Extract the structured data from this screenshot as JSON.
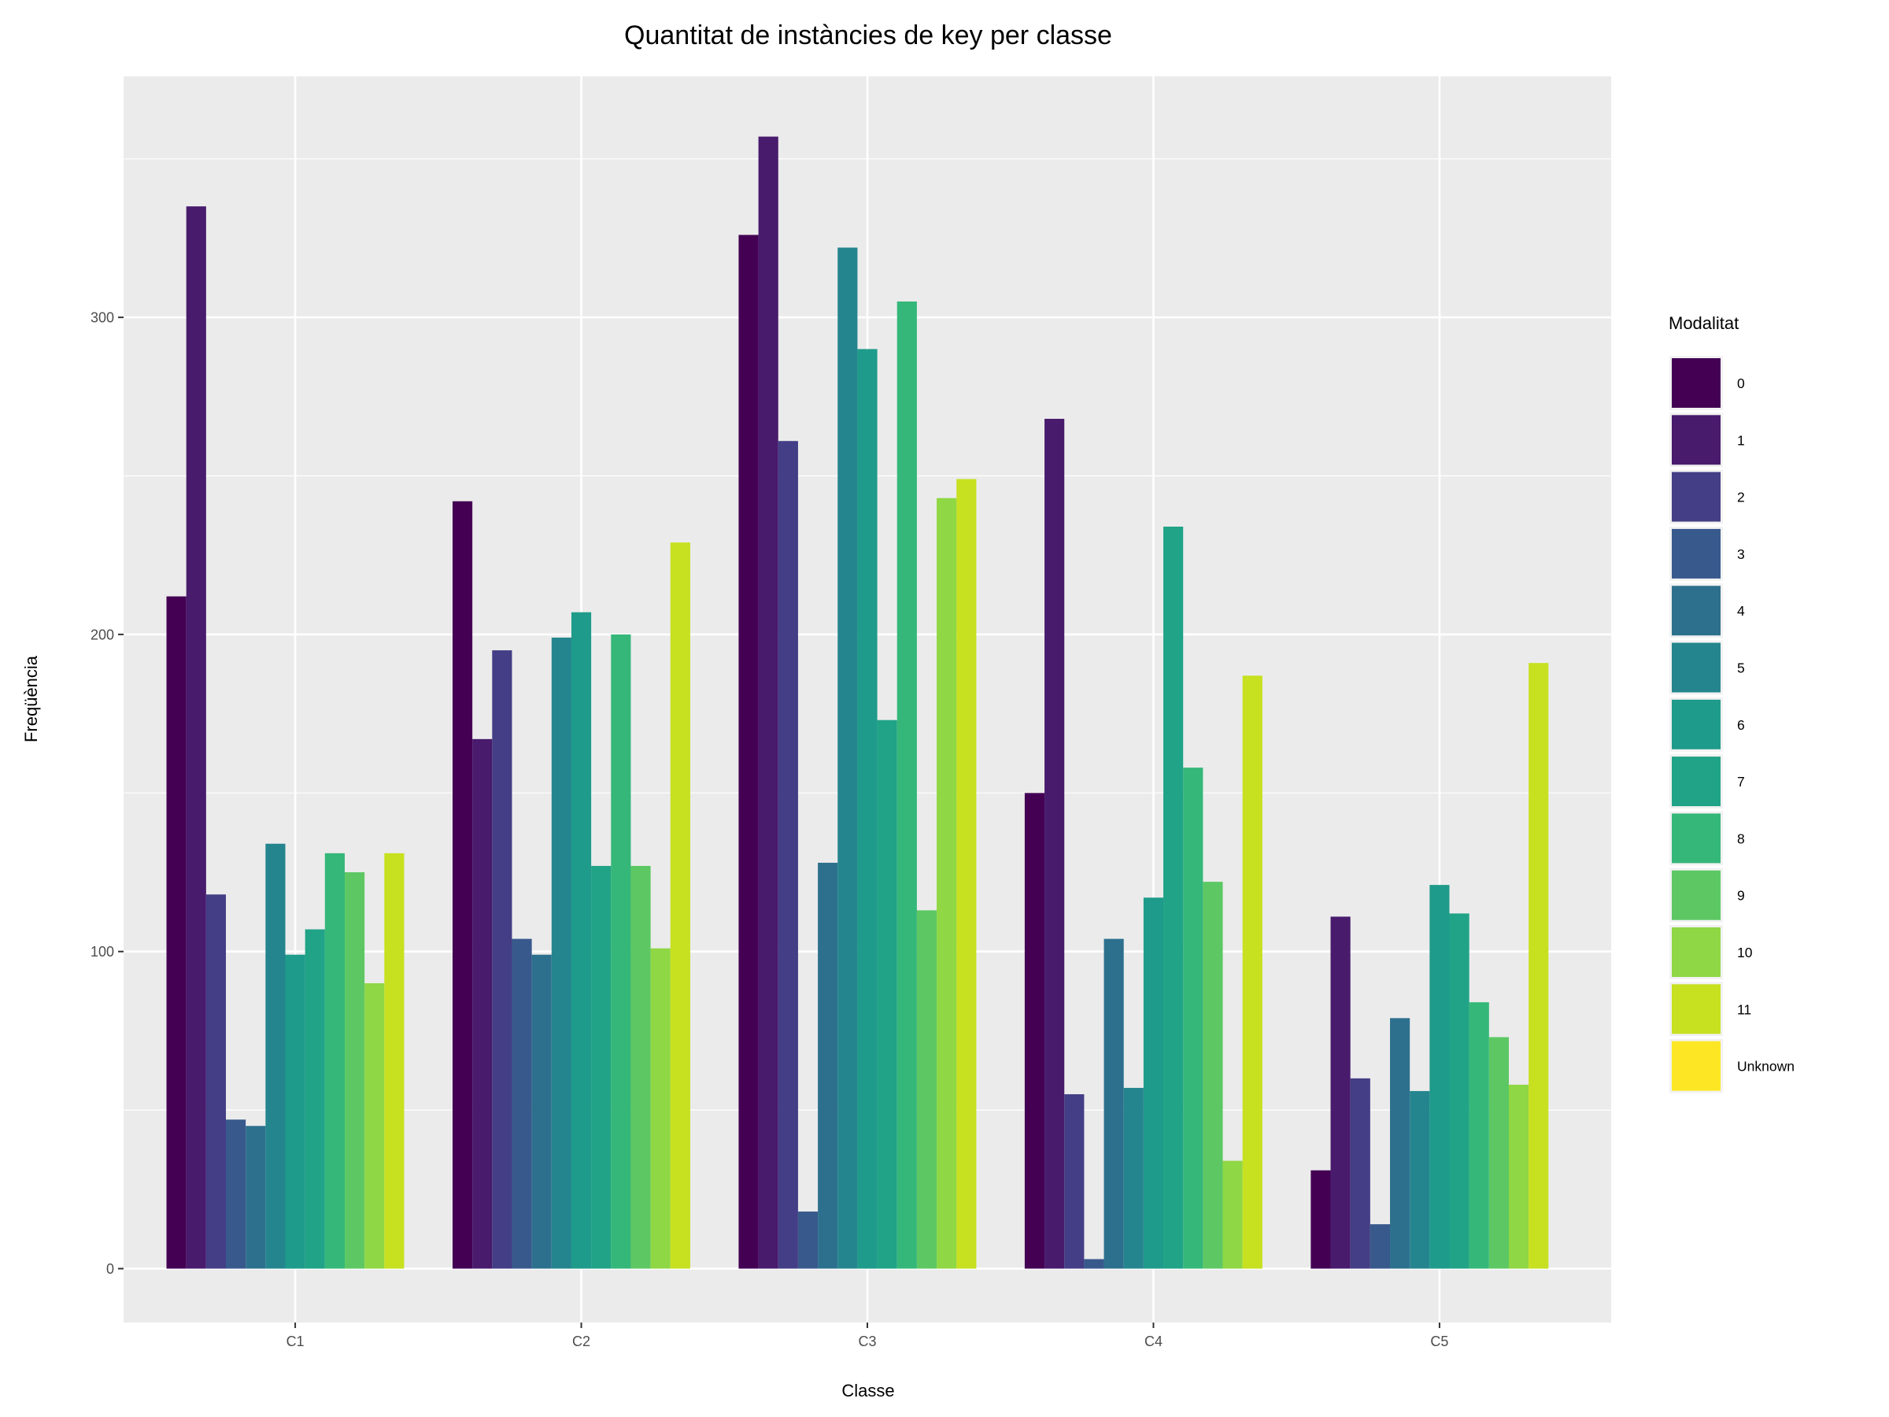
{
  "chart_data": {
    "type": "bar",
    "title": "Quantitat de instàncies de key per classe",
    "xlabel": "Classe",
    "ylabel": "Freqüència",
    "categories": [
      "C1",
      "C2",
      "C3",
      "C4",
      "C5"
    ],
    "y_ticks": [
      "0",
      "100",
      "200",
      "300"
    ],
    "ylim": [
      -17,
      376
    ],
    "grid": true,
    "legend": {
      "title": "Modalitat",
      "placement": "right"
    },
    "series": [
      {
        "name": "0",
        "color": "#440154",
        "values": [
          212,
          242,
          326,
          150,
          31
        ]
      },
      {
        "name": "1",
        "color": "#481B6D",
        "values": [
          335,
          167,
          357,
          268,
          111
        ]
      },
      {
        "name": "2",
        "color": "#433E85",
        "values": [
          118,
          195,
          261,
          55,
          60
        ]
      },
      {
        "name": "3",
        "color": "#38598C",
        "values": [
          47,
          104,
          18,
          3,
          14
        ]
      },
      {
        "name": "4",
        "color": "#2D708E",
        "values": [
          45,
          99,
          128,
          104,
          79
        ]
      },
      {
        "name": "5",
        "color": "#25858E",
        "values": [
          134,
          199,
          322,
          57,
          56
        ]
      },
      {
        "name": "6",
        "color": "#1E9B8A",
        "values": [
          99,
          207,
          290,
          117,
          121
        ]
      },
      {
        "name": "7",
        "color": "#20A386",
        "values": [
          107,
          127,
          173,
          234,
          112
        ]
      },
      {
        "name": "8",
        "color": "#35B779",
        "values": [
          131,
          200,
          305,
          158,
          84
        ]
      },
      {
        "name": "9",
        "color": "#5DC863",
        "values": [
          125,
          127,
          113,
          122,
          73
        ]
      },
      {
        "name": "10",
        "color": "#8FD744",
        "values": [
          90,
          101,
          243,
          34,
          58
        ]
      },
      {
        "name": "11",
        "color": "#C7E020",
        "values": [
          131,
          229,
          249,
          187,
          191
        ]
      },
      {
        "name": "Unknown",
        "color": "#FDE725",
        "values": [
          null,
          null,
          null,
          null,
          null
        ]
      }
    ]
  }
}
